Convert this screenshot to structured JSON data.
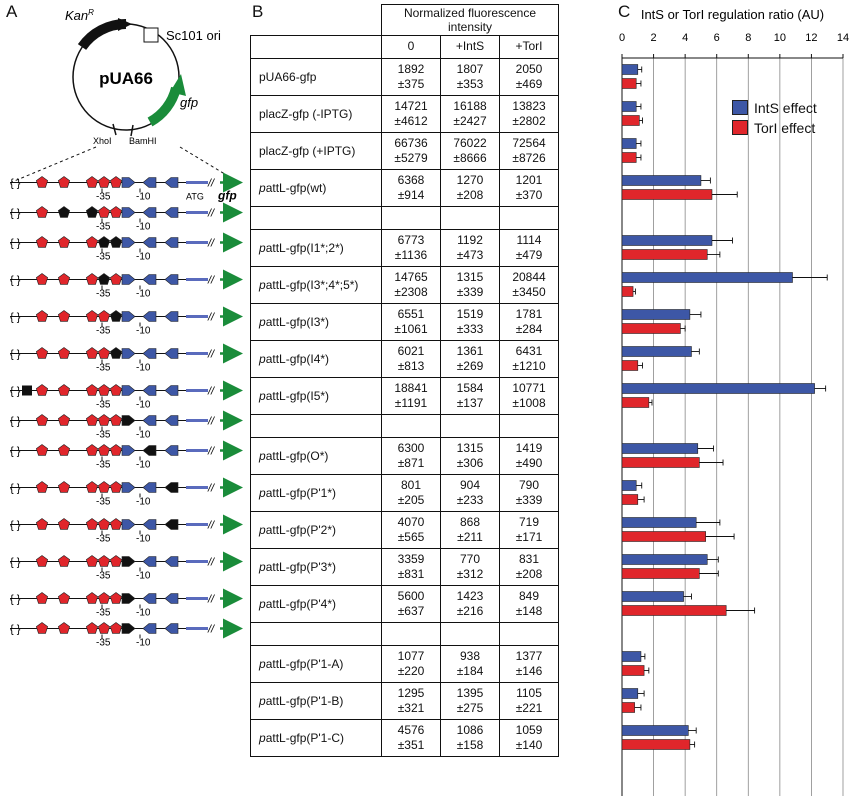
{
  "panel_labels": {
    "a": "A",
    "b": "B",
    "c": "C"
  },
  "plasmid": {
    "name": "pUA66",
    "resistance": "Kan",
    "resistance_sup": "R",
    "ori": "Sc101 ori",
    "reporter": "gfp",
    "site1": "XhoI",
    "site2": "BamHI"
  },
  "promoter_labels": {
    "m35": "-35",
    "m10": "-10",
    "atg": "ATG",
    "gfp": "gfp"
  },
  "constructs": [
    {
      "row": 3,
      "sites": [
        "r",
        "r",
        "r",
        "r",
        "r",
        "b",
        "b",
        "b"
      ],
      "atg": true
    },
    {
      "row": 4,
      "sites": [
        "r",
        "k",
        "k",
        "r",
        "r",
        "b",
        "b",
        "b"
      ],
      "atg": false
    },
    {
      "row": 5,
      "sites": [
        "r",
        "r",
        "r",
        "k",
        "k",
        "b",
        "b",
        "b"
      ],
      "atg": false
    },
    {
      "row": 6,
      "sites": [
        "r",
        "r",
        "r",
        "k",
        "r",
        "b",
        "b",
        "b"
      ],
      "atg": false
    },
    {
      "row": 7,
      "sites": [
        "r",
        "r",
        "r",
        "r",
        "k",
        "b",
        "b",
        "b"
      ],
      "atg": false
    },
    {
      "row": 8,
      "sites": [
        "r",
        "r",
        "r",
        "r",
        "k",
        "b",
        "b",
        "b"
      ],
      "atg": false,
      "m5only": true
    },
    {
      "row": 9,
      "sites": [
        "ks",
        "r",
        "r",
        "r",
        "r",
        "b",
        "b",
        "b"
      ],
      "atg": false
    },
    {
      "row": 10,
      "sites": [
        "r",
        "r",
        "r",
        "r",
        "r",
        "k",
        "b",
        "b"
      ],
      "atg": false
    },
    {
      "row": 11,
      "sites": [
        "r",
        "r",
        "r",
        "r",
        "r",
        "b",
        "k",
        "b"
      ],
      "atg": false
    },
    {
      "row": 12,
      "sites": [
        "r",
        "r",
        "r",
        "r",
        "r",
        "b",
        "b",
        "k"
      ],
      "atg": false
    },
    {
      "row": 13,
      "sites": [
        "r",
        "r",
        "r",
        "r",
        "r",
        "b",
        "b",
        "kk"
      ],
      "atg": false
    },
    {
      "row": 14,
      "sites": [
        "r",
        "r",
        "r",
        "r",
        "r",
        "k",
        "b",
        "b"
      ],
      "atg": false
    },
    {
      "row": 15,
      "sites": [
        "r",
        "r",
        "r",
        "r",
        "r",
        "k",
        "b",
        "b"
      ],
      "atg": false
    },
    {
      "row": 16,
      "sites": [
        "r",
        "r",
        "r",
        "r",
        "r",
        "k",
        "b",
        "b"
      ],
      "atg": false
    }
  ],
  "table": {
    "header": "Normalized fluorescence intensity",
    "columns": [
      "0",
      "+IntS",
      "+TorI"
    ],
    "rows": [
      {
        "pre": "",
        "name": "pUA66-gfp",
        "v": [
          "1892\n±375",
          "1807\n±353",
          "2050\n±469"
        ]
      },
      {
        "pre": "",
        "name": "placZ-gfp (-IPTG)",
        "v": [
          "14721\n±4612",
          "16188\n±2427",
          "13823\n±2802"
        ]
      },
      {
        "pre": "",
        "name": "placZ-gfp (+IPTG)",
        "v": [
          "66736\n±5279",
          "76022\n±8666",
          "72564\n±8726"
        ]
      },
      {
        "pre": "p",
        "name": "attL-gfp(wt)",
        "v": [
          "6368\n±914",
          "1270\n±208",
          "1201\n±370"
        ]
      },
      {
        "blank": true
      },
      {
        "pre": "p",
        "name": "attL-gfp(I1*;2*)",
        "v": [
          "6773\n±1136",
          "1192\n±473",
          "1114\n±479"
        ]
      },
      {
        "pre": "p",
        "name": "attL-gfp(I3*;4*;5*)",
        "v": [
          "14765\n±2308",
          "1315\n±339",
          "20844\n±3450"
        ]
      },
      {
        "pre": "p",
        "name": "attL-gfp(I3*)",
        "v": [
          "6551\n±1061",
          "1519\n±333",
          "1781\n±284"
        ]
      },
      {
        "pre": "p",
        "name": "attL-gfp(I4*)",
        "v": [
          "6021\n±813",
          "1361\n±269",
          "6431\n±1210"
        ]
      },
      {
        "pre": "p",
        "name": "attL-gfp(I5*)",
        "v": [
          "18841\n±1191",
          "1584\n±137",
          "10771\n±1008"
        ]
      },
      {
        "blank": true
      },
      {
        "pre": "p",
        "name": "attL-gfp(O*)",
        "v": [
          "6300\n±871",
          "1315\n±306",
          "1419\n±490"
        ]
      },
      {
        "pre": "p",
        "name": "attL-gfp(P'1*)",
        "v": [
          "801\n±205",
          "904\n±233",
          "790\n±339"
        ]
      },
      {
        "pre": "p",
        "name": "attL-gfp(P'2*)",
        "v": [
          "4070\n±565",
          "868\n±211",
          "719\n±171"
        ]
      },
      {
        "pre": "p",
        "name": "attL-gfp(P'3*)",
        "v": [
          "3359\n±831",
          "770\n±312",
          "831\n±208"
        ]
      },
      {
        "pre": "p",
        "name": "attL-gfp(P'4*)",
        "v": [
          "5600\n±637",
          "1423\n±216",
          "849\n±148"
        ]
      },
      {
        "blank": true
      },
      {
        "pre": "p",
        "name": "attL-gfp(P'1-A)",
        "v": [
          "1077\n±220",
          "938\n±184",
          "1377\n±146"
        ]
      },
      {
        "pre": "p",
        "name": "attL-gfp(P'1-B)",
        "v": [
          "1295\n±321",
          "1395\n±275",
          "1105\n±221"
        ]
      },
      {
        "pre": "p",
        "name": "attL-gfp(P'1-C)",
        "v": [
          "4576\n±351",
          "1086\n±158",
          "1059\n±140"
        ]
      }
    ]
  },
  "chart_data": {
    "type": "bar",
    "orientation": "horizontal",
    "title": "IntS or TorI regulation ratio (AU)",
    "xlim": [
      0,
      14
    ],
    "ticks": [
      0,
      2,
      4,
      6,
      8,
      10,
      12,
      14
    ],
    "grid": true,
    "legend_position": "top-right",
    "categories": [
      "pUA66-gfp",
      "placZ-gfp (-IPTG)",
      "placZ-gfp (+IPTG)",
      "pattL-gfp(wt)",
      "",
      "pattL-gfp(I1*;2*)",
      "pattL-gfp(I3*;4*;5*)",
      "pattL-gfp(I3*)",
      "pattL-gfp(I4*)",
      "pattL-gfp(I5*)",
      "",
      "pattL-gfp(O*)",
      "pattL-gfp(P'1*)",
      "pattL-gfp(P'2*)",
      "pattL-gfp(P'3*)",
      "pattL-gfp(P'4*)",
      "",
      "pattL-gfp(P'1-A)",
      "pattL-gfp(P'1-B)",
      "pattL-gfp(P'1-C)"
    ],
    "series": [
      {
        "name": "IntS effect",
        "color": "#3d57a6",
        "values": [
          1.0,
          0.9,
          0.9,
          5.0,
          null,
          5.7,
          10.8,
          4.3,
          4.4,
          12.2,
          null,
          4.8,
          0.9,
          4.7,
          5.4,
          3.9,
          null,
          1.2,
          1.0,
          4.2
        ],
        "errors": [
          0.25,
          0.3,
          0.3,
          0.6,
          null,
          1.3,
          2.2,
          0.7,
          0.5,
          0.7,
          null,
          1.0,
          0.35,
          1.5,
          0.7,
          0.5,
          null,
          0.25,
          0.4,
          0.5
        ]
      },
      {
        "name": "TorI effect",
        "color": "#e0262b",
        "values": [
          0.9,
          1.1,
          0.9,
          5.7,
          null,
          5.4,
          0.7,
          3.7,
          1.0,
          1.7,
          null,
          4.9,
          1.0,
          5.3,
          4.9,
          6.6,
          null,
          1.4,
          0.8,
          4.3
        ],
        "errors": [
          0.3,
          0.2,
          0.3,
          1.6,
          null,
          0.8,
          0.15,
          0.3,
          0.3,
          0.2,
          null,
          1.5,
          0.4,
          1.8,
          1.2,
          1.8,
          null,
          0.3,
          0.4,
          0.3
        ]
      }
    ]
  }
}
